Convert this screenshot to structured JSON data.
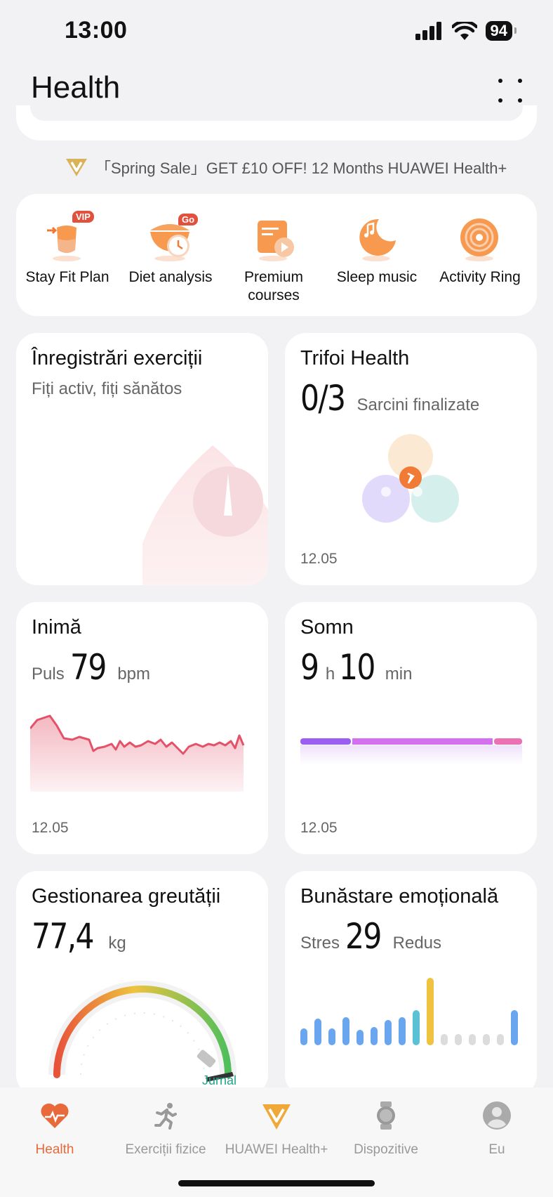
{
  "status": {
    "time": "13:00",
    "battery": "94"
  },
  "header": {
    "title": "Health"
  },
  "promo": {
    "text": "「Spring Sale」GET £10 OFF!  12 Months HUAWEI Health+"
  },
  "quick": [
    {
      "label": "Stay Fit Plan",
      "badge": "VIP"
    },
    {
      "label": "Diet analysis",
      "badge": "Go"
    },
    {
      "label": "Premium courses"
    },
    {
      "label": "Sleep music"
    },
    {
      "label": "Activity Ring"
    }
  ],
  "exercise": {
    "title": "Înregistrări exerciții",
    "subtitle": "Fiți activ, fiți sănătos"
  },
  "clover": {
    "title": "Trifoi Health",
    "value": "0/3",
    "label": "Sarcini finalizate",
    "date": "12.05"
  },
  "heart": {
    "title": "Inimă",
    "prefix": "Puls",
    "value": "79",
    "unit": "bpm",
    "date": "12.05"
  },
  "sleep": {
    "title": "Somn",
    "hours": "9",
    "h_unit": "h",
    "minutes": "10",
    "m_unit": "min",
    "date": "12.05"
  },
  "weight": {
    "title": "Gestionarea greutății",
    "value": "77,4",
    "unit": "kg",
    "link": "Jurnal"
  },
  "emotion": {
    "title": "Bunăstare emoțională",
    "prefix": "Stres",
    "value": "29",
    "label": "Redus"
  },
  "tabs": [
    {
      "label": "Health",
      "icon": "heart-pulse-icon",
      "active": true
    },
    {
      "label": "Exerciții fizice",
      "icon": "runner-icon"
    },
    {
      "label": "HUAWEI Health+",
      "icon": "health-plus-icon"
    },
    {
      "label": "Dispozitive",
      "icon": "watch-icon"
    },
    {
      "label": "Eu",
      "icon": "profile-icon"
    }
  ],
  "colors": {
    "accent": "#e8693a",
    "heart_line": "#e4526a",
    "sleep": "#c76be8",
    "stress_bar": "#6aa6ef",
    "stress_peak": "#efc23f"
  }
}
